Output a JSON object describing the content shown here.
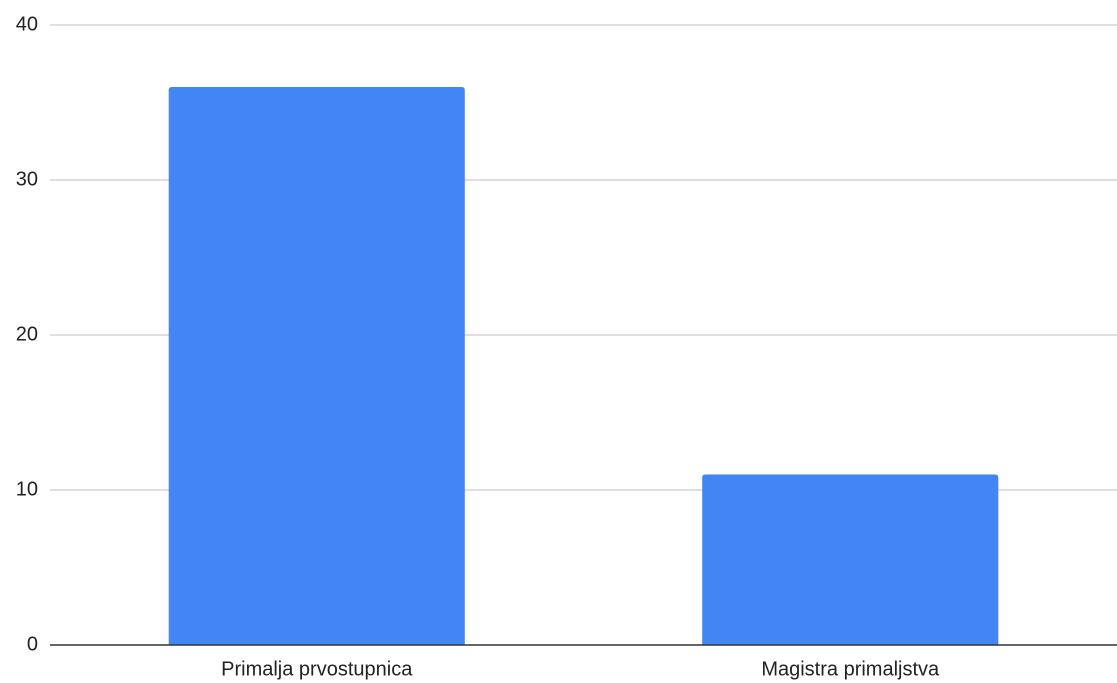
{
  "chart_data": {
    "type": "bar",
    "title": "",
    "xlabel": "",
    "ylabel": "",
    "categories": [
      "Primalja prvostupnica",
      "Magistra primaljstva"
    ],
    "values": [
      36,
      11
    ],
    "ylim": [
      0,
      40
    ],
    "yticks": [
      0,
      10,
      20,
      30,
      40
    ],
    "ytick_labels": [
      "0",
      "10",
      "20",
      "30",
      "40"
    ],
    "grid": true,
    "legend": "none",
    "colors": {
      "bar": "#4285f4",
      "grid": "#cccccc",
      "baseline": "#333333",
      "text": "#222222"
    }
  }
}
